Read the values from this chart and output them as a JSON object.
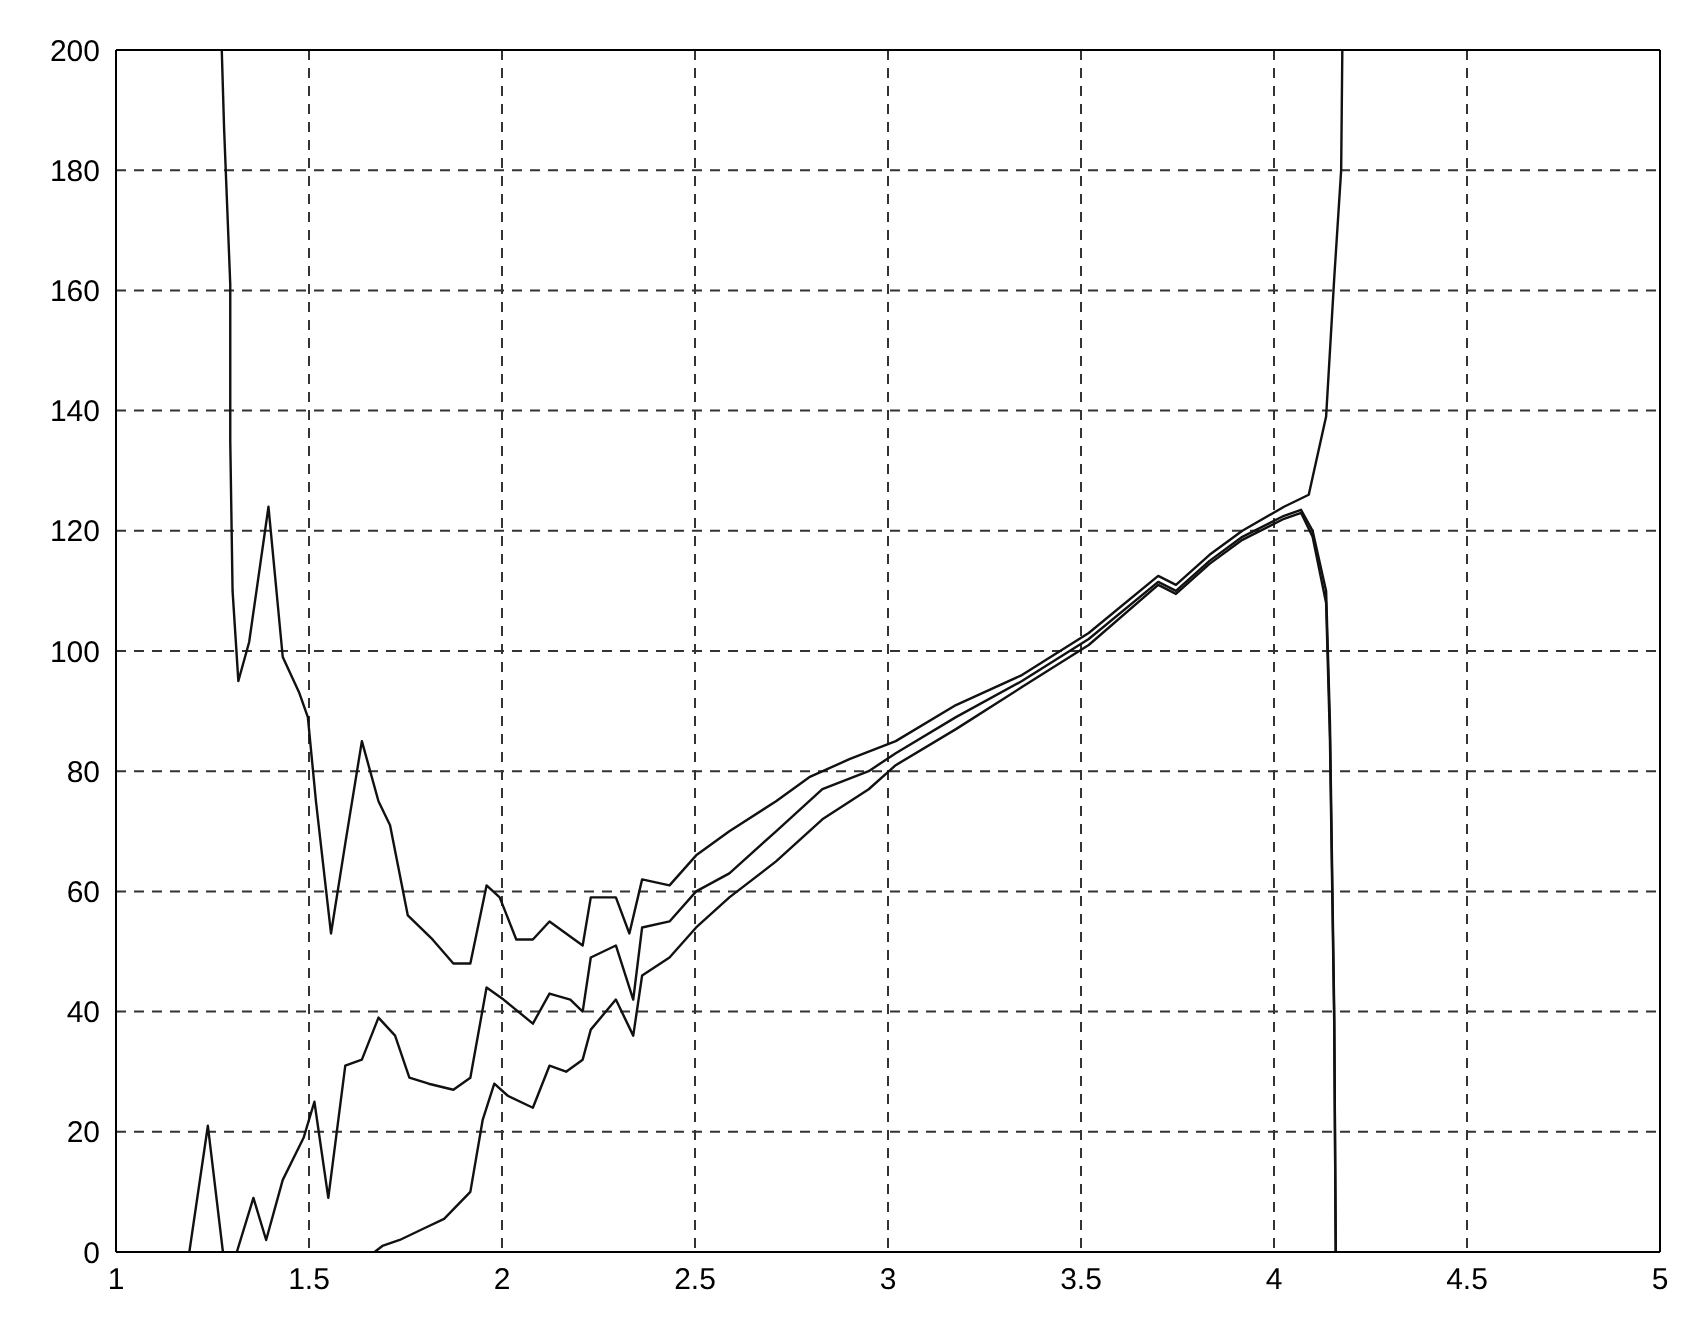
{
  "chart_data": {
    "type": "line",
    "xlim": [
      1,
      5
    ],
    "ylim": [
      0,
      200
    ],
    "xticks": [
      1,
      1.5,
      2,
      2.5,
      3,
      3.5,
      4,
      4.5,
      5
    ],
    "yticks": [
      0,
      20,
      40,
      60,
      80,
      100,
      120,
      140,
      160,
      180,
      200
    ],
    "grid": true,
    "marker": "none",
    "line_style": "solid",
    "series": [
      {
        "color": "#111111",
        "x": [
          1.274,
          1.28,
          1.296,
          1.296,
          1.302,
          1.317,
          1.345,
          1.395,
          1.432,
          1.475,
          1.497,
          1.518,
          1.557,
          1.594,
          1.637,
          1.68,
          1.71,
          1.756,
          1.82,
          1.874,
          1.918,
          1.96,
          1.994,
          2.037,
          2.08,
          2.123,
          2.166,
          2.209,
          2.23,
          2.295,
          2.33,
          2.363,
          2.434,
          2.503,
          2.589,
          2.71,
          2.796,
          2.9,
          3.02,
          3.176,
          3.347,
          3.52,
          3.7,
          3.746,
          3.833,
          3.918,
          4.026,
          4.09,
          4.135,
          4.156,
          4.174,
          4.177
        ],
        "values": [
          200,
          187,
          161,
          135,
          110,
          95,
          101.5,
          124,
          99,
          93,
          89,
          75,
          53,
          68,
          85,
          75,
          71,
          56,
          52,
          48,
          48,
          61,
          59,
          52,
          52,
          55,
          53,
          51,
          59,
          59,
          53,
          62,
          61,
          66,
          70,
          75,
          79,
          82,
          85,
          91,
          96,
          103,
          112.5,
          111,
          116,
          120,
          124,
          126,
          139,
          162,
          180,
          200
        ]
      },
      {
        "color": "#111111",
        "x": [
          1.19,
          1.238,
          1.277,
          1.29,
          1.313,
          1.356,
          1.389,
          1.432,
          1.486,
          1.514,
          1.55,
          1.594,
          1.637,
          1.68,
          1.723,
          1.76,
          1.81,
          1.874,
          1.918,
          1.96,
          2.004,
          2.08,
          2.123,
          2.177,
          2.209,
          2.23,
          2.295,
          2.34,
          2.363,
          2.434,
          2.503,
          2.589,
          2.71,
          2.83,
          2.95,
          3.02,
          3.176,
          3.347,
          3.52,
          3.7,
          3.746,
          3.833,
          3.918,
          4.026,
          4.07,
          4.1,
          4.135,
          4.145,
          4.156,
          4.16
        ],
        "values": [
          0,
          21,
          0,
          null,
          0,
          9,
          2,
          12,
          19,
          25,
          9,
          31,
          32,
          39,
          36,
          29,
          28,
          27,
          29,
          44,
          42,
          38,
          43,
          42,
          40,
          49,
          51,
          42,
          54,
          55,
          60,
          63,
          70,
          77,
          80,
          83,
          89,
          95,
          102,
          111.5,
          110,
          115,
          119,
          122.5,
          123.5,
          120,
          110,
          88,
          40,
          0
        ]
      },
      {
        "color": "#111111",
        "x": [
          1.67,
          1.69,
          1.735,
          1.8,
          1.85,
          1.918,
          1.95,
          1.98,
          2.015,
          2.08,
          2.123,
          2.166,
          2.209,
          2.23,
          2.295,
          2.34,
          2.363,
          2.434,
          2.503,
          2.589,
          2.71,
          2.83,
          2.95,
          3.02,
          3.176,
          3.347,
          3.52,
          3.7,
          3.746,
          3.833,
          3.918,
          4.026,
          4.07,
          4.1,
          4.135,
          4.145,
          4.156,
          4.16
        ],
        "values": [
          0,
          1,
          2,
          4,
          5.5,
          10,
          22,
          28,
          26,
          24,
          31,
          30,
          32,
          37,
          42,
          36,
          46,
          49,
          54,
          59,
          65,
          72,
          77,
          81,
          87,
          94,
          101,
          111,
          109.5,
          114.5,
          118.5,
          122,
          123,
          119,
          108,
          85,
          38,
          0
        ]
      }
    ]
  }
}
